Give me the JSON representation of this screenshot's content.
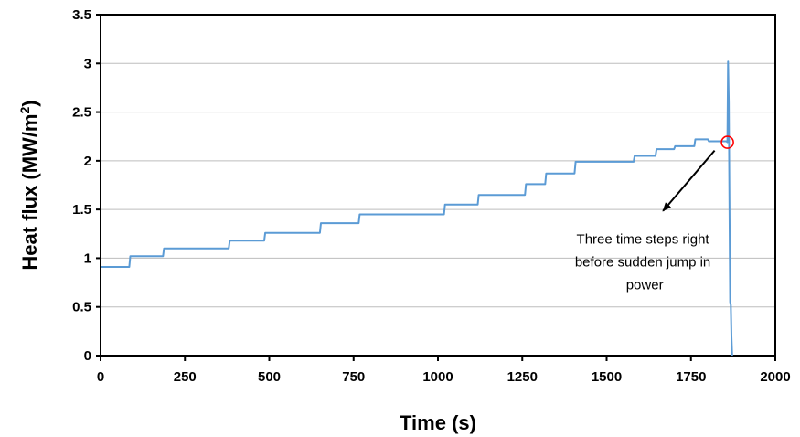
{
  "chart_data": {
    "type": "line",
    "title": "",
    "xlabel": "Time (s)",
    "ylabel_prefix": "Heat flux (MW/m",
    "ylabel_sup": "2",
    "ylabel_suffix": ")",
    "xlim": [
      0,
      2000
    ],
    "ylim": [
      0,
      3.5
    ],
    "xticks": [
      0,
      250,
      500,
      750,
      1000,
      1250,
      1500,
      1750,
      2000
    ],
    "yticks": [
      0,
      0.5,
      1,
      1.5,
      2,
      2.5,
      3,
      3.5
    ],
    "ytick_labels": [
      "0",
      "0.5",
      "1",
      "1.5",
      "2",
      "2.5",
      "3",
      "3.5"
    ],
    "grid": "horizontal",
    "line_color": "#5B9BD5",
    "marker_color": "#FF0000",
    "series": [
      {
        "x": [
          0,
          85,
          88,
          185,
          188,
          380,
          383,
          485,
          488,
          650,
          653,
          765,
          768,
          1018,
          1021,
          1118,
          1121,
          1258,
          1261,
          1318,
          1321,
          1405,
          1408,
          1580,
          1583,
          1645,
          1648,
          1700,
          1703,
          1760,
          1763,
          1800,
          1803,
          1855,
          1858,
          1860,
          1862,
          1864,
          1866,
          1868,
          1870,
          1872
        ],
        "y": [
          0.91,
          0.91,
          1.02,
          1.02,
          1.1,
          1.1,
          1.18,
          1.18,
          1.26,
          1.26,
          1.36,
          1.36,
          1.45,
          1.45,
          1.55,
          1.55,
          1.65,
          1.65,
          1.76,
          1.76,
          1.87,
          1.87,
          1.99,
          1.99,
          2.05,
          2.05,
          2.12,
          2.12,
          2.15,
          2.15,
          2.22,
          2.22,
          2.2,
          2.2,
          2.19,
          3.02,
          2.6,
          1.6,
          0.55,
          0.52,
          0.2,
          0.0
        ]
      }
    ],
    "highlight_point": {
      "x": 1858,
      "y": 2.19
    },
    "annotation": {
      "lines": [
        "Three time steps right",
        "before sudden jump in",
        "power"
      ],
      "x": 1640,
      "y": 1.41
    }
  }
}
